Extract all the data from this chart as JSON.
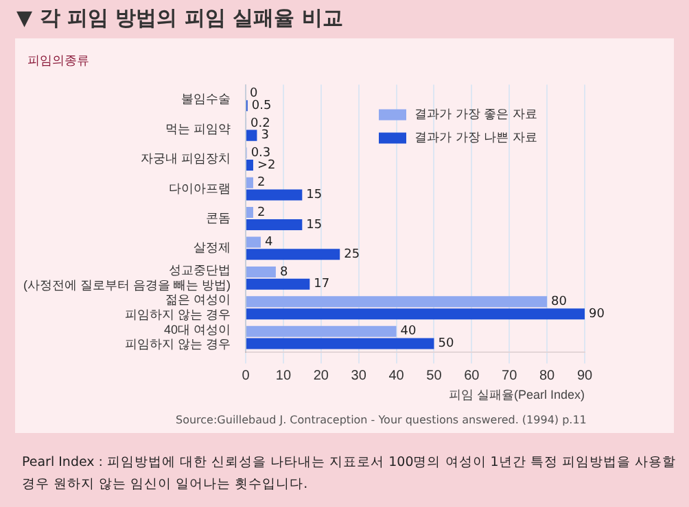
{
  "chart_data": {
    "type": "bar",
    "orientation": "horizontal",
    "title": "▼ 각 피임 방법의 피임 실패율 비교",
    "ylabel": "피임의종류",
    "xlabel": "피임 실패율(Pearl Index)",
    "categories": [
      "불임수술",
      "먹는 피임약",
      "자궁내 피임장치",
      "다이아프램",
      "콘돔",
      "살정제",
      "성교중단법\n(사정전에 질로부터 음경을 빼는 방법)",
      "젊은 여성이\n피임하지 않는 경우",
      "40대 여성이\n피임하지 않는 경우"
    ],
    "series": [
      {
        "name": "결과가 가장 좋은 자료",
        "color": "#8fa8f0",
        "values": [
          0,
          0.2,
          0.3,
          2,
          2,
          4,
          8,
          80,
          40
        ],
        "value_labels": [
          "0",
          "0.2",
          "0.3",
          "2",
          "2",
          "4",
          "8",
          "80",
          "40"
        ]
      },
      {
        "name": "결과가 가장 나쁜 자료",
        "color": "#1f4fd6",
        "values": [
          0.5,
          3,
          2,
          15,
          15,
          25,
          17,
          90,
          50
        ],
        "value_labels": [
          "0.5",
          "3",
          ">2",
          "15",
          "15",
          "25",
          "17",
          "90",
          "50"
        ]
      }
    ],
    "xlim": [
      0,
      90
    ],
    "xticks": [
      0,
      10,
      20,
      30,
      40,
      50,
      60,
      70,
      80,
      90
    ],
    "grid": "x",
    "legend": "top right",
    "annotations": [
      "Source:Guillebaud J. Contraception - Your questions answered. (1994) p.11",
      "Pearl Index : 피임방법에 대한 신뢰성을 나타내는 지표로서 100명의 여성이 1년간 특정 피임방법을 사용할 경우 원하지 않는 임신이 일어나는 횟수입니다."
    ]
  }
}
